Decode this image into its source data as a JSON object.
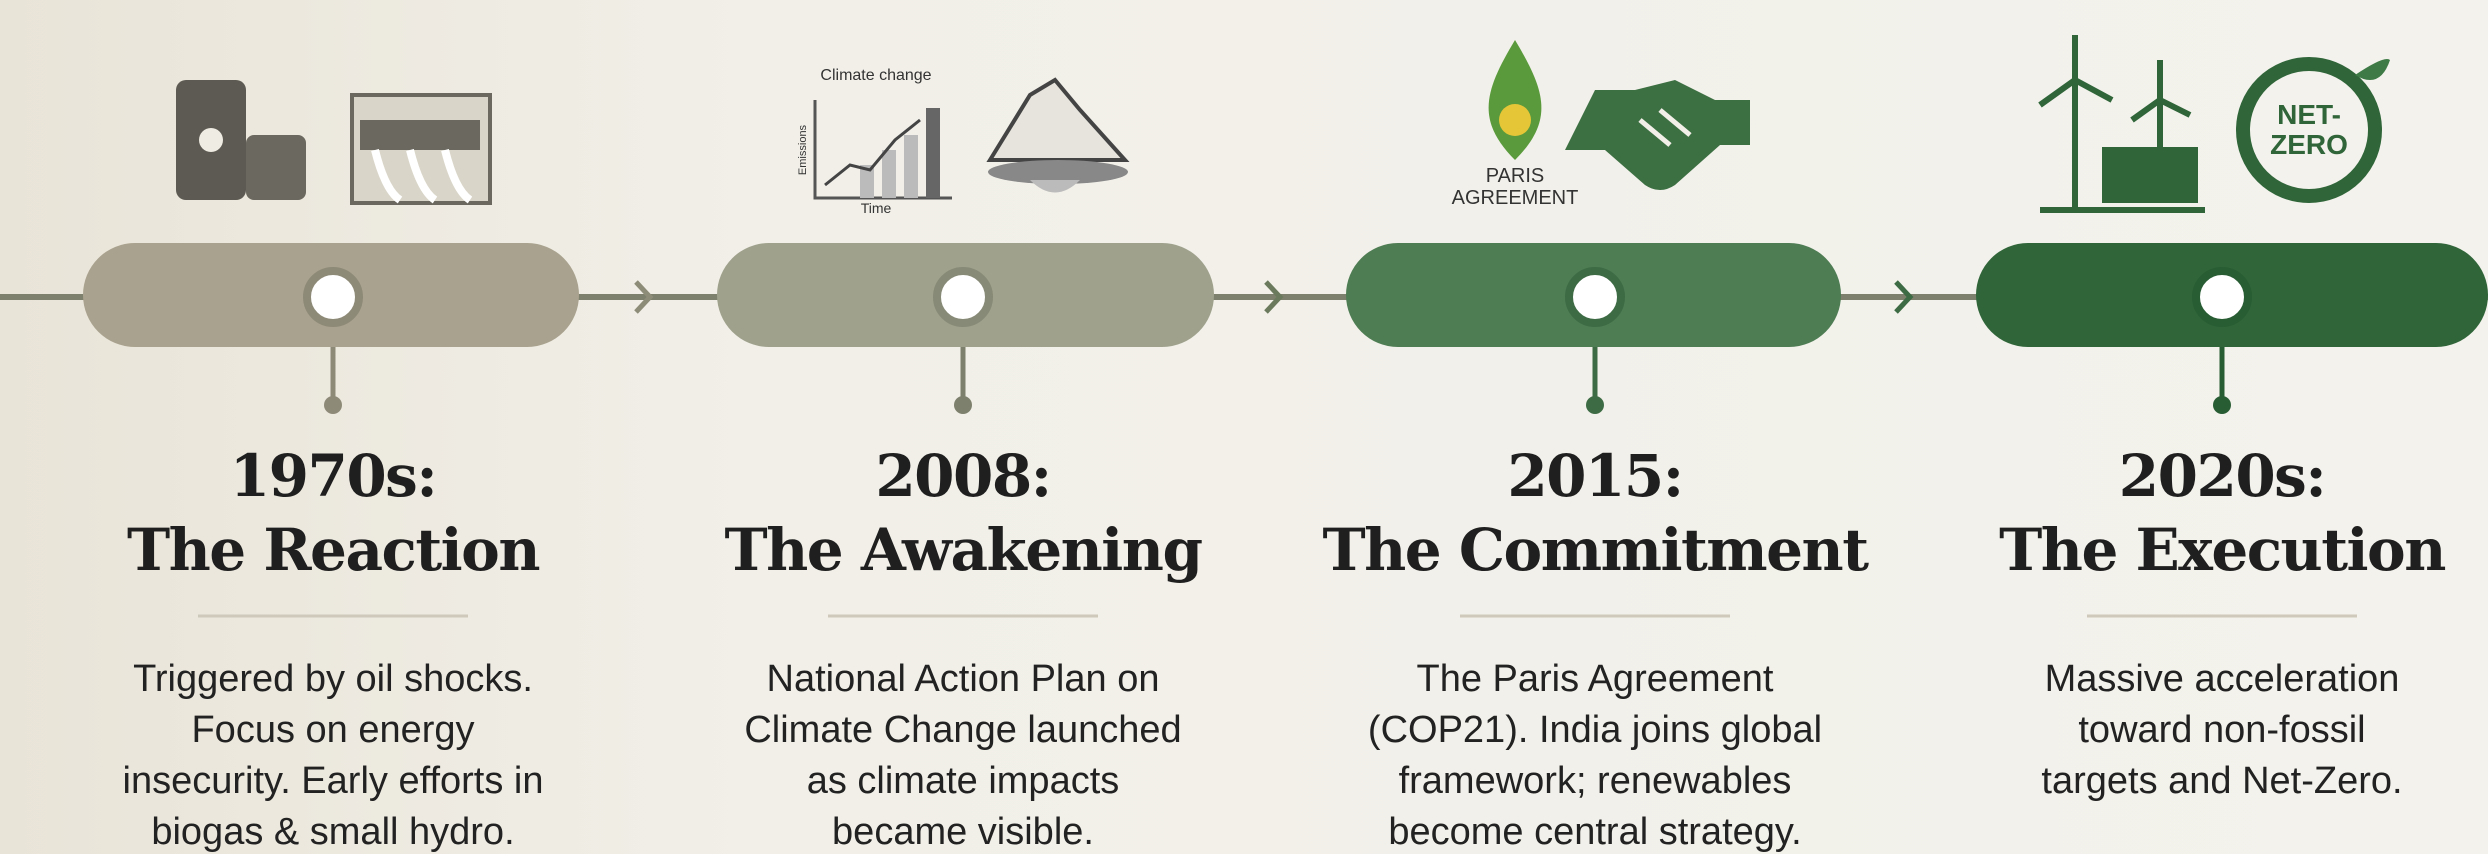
{
  "stages": [
    {
      "year": "1970s:",
      "title": "The Reaction",
      "description": [
        "Triggered by oil shocks.",
        "Focus on energy",
        "insecurity. Early efforts in",
        "biogas & small hydro."
      ]
    },
    {
      "year": "2008:",
      "title": "The Awakening",
      "description": [
        "National Action Plan on",
        "Climate Change launched",
        "as climate impacts",
        "became visible."
      ]
    },
    {
      "year": "2015:",
      "title": "The Commitment",
      "description": [
        "The Paris Agreement",
        "(COP21). India joins global",
        "framework; renewables",
        "become central strategy."
      ]
    },
    {
      "year": "2020s:",
      "title": "The Execution",
      "description": [
        "Massive acceleration",
        "toward non-fossil",
        "targets and Net-Zero."
      ]
    }
  ],
  "icons": {
    "chart_title": "Climate change",
    "chart_x_label": "Time",
    "chart_y_label": "Emissions",
    "paris_logo": [
      "PARIS",
      "AGREEMENT"
    ],
    "net_zero": [
      "NET-",
      "ZERO"
    ]
  }
}
